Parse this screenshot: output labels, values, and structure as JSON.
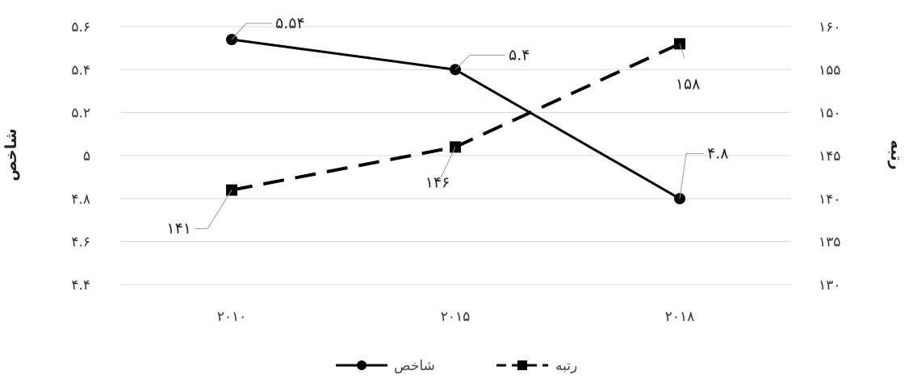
{
  "chart_data": {
    "type": "line",
    "x": [
      "2010",
      "2015",
      "2018"
    ],
    "x_tick_labels": [
      "۲۰۱۰",
      "۲۰۱۵",
      "۲۰۱۸"
    ],
    "series": [
      {
        "name": "شاخص",
        "axis": "left",
        "values": [
          5.54,
          5.4,
          4.8
        ],
        "data_labels": [
          "۵.۵۴",
          "۵.۴",
          "۴.۸"
        ],
        "line_style": "solid",
        "marker": "circle",
        "color": "#000000"
      },
      {
        "name": "رتبه",
        "axis": "right",
        "values": [
          141,
          146,
          158
        ],
        "data_labels": [
          "۱۴۱",
          "۱۴۶",
          "۱۵۸"
        ],
        "line_style": "dashed",
        "marker": "square",
        "color": "#000000"
      }
    ],
    "y_left": {
      "label": "شاخص",
      "lim": [
        4.4,
        5.6
      ],
      "ticks": [
        5.6,
        5.4,
        5.2,
        5.0,
        4.8,
        4.6,
        4.4
      ],
      "tick_labels": [
        "۵.۶",
        "۵.۴",
        "۵.۲",
        "۵",
        "۴.۸",
        "۴.۶",
        "۴.۴"
      ]
    },
    "y_right": {
      "label": "رتبه",
      "lim": [
        130,
        160
      ],
      "ticks": [
        160,
        155,
        150,
        145,
        140,
        135,
        130
      ],
      "tick_labels": [
        "۱۶۰",
        "۱۵۵",
        "۱۵۰",
        "۱۴۵",
        "۱۴۰",
        "۱۳۵",
        "۱۳۰"
      ]
    },
    "grid": true,
    "legend_position": "bottom"
  }
}
